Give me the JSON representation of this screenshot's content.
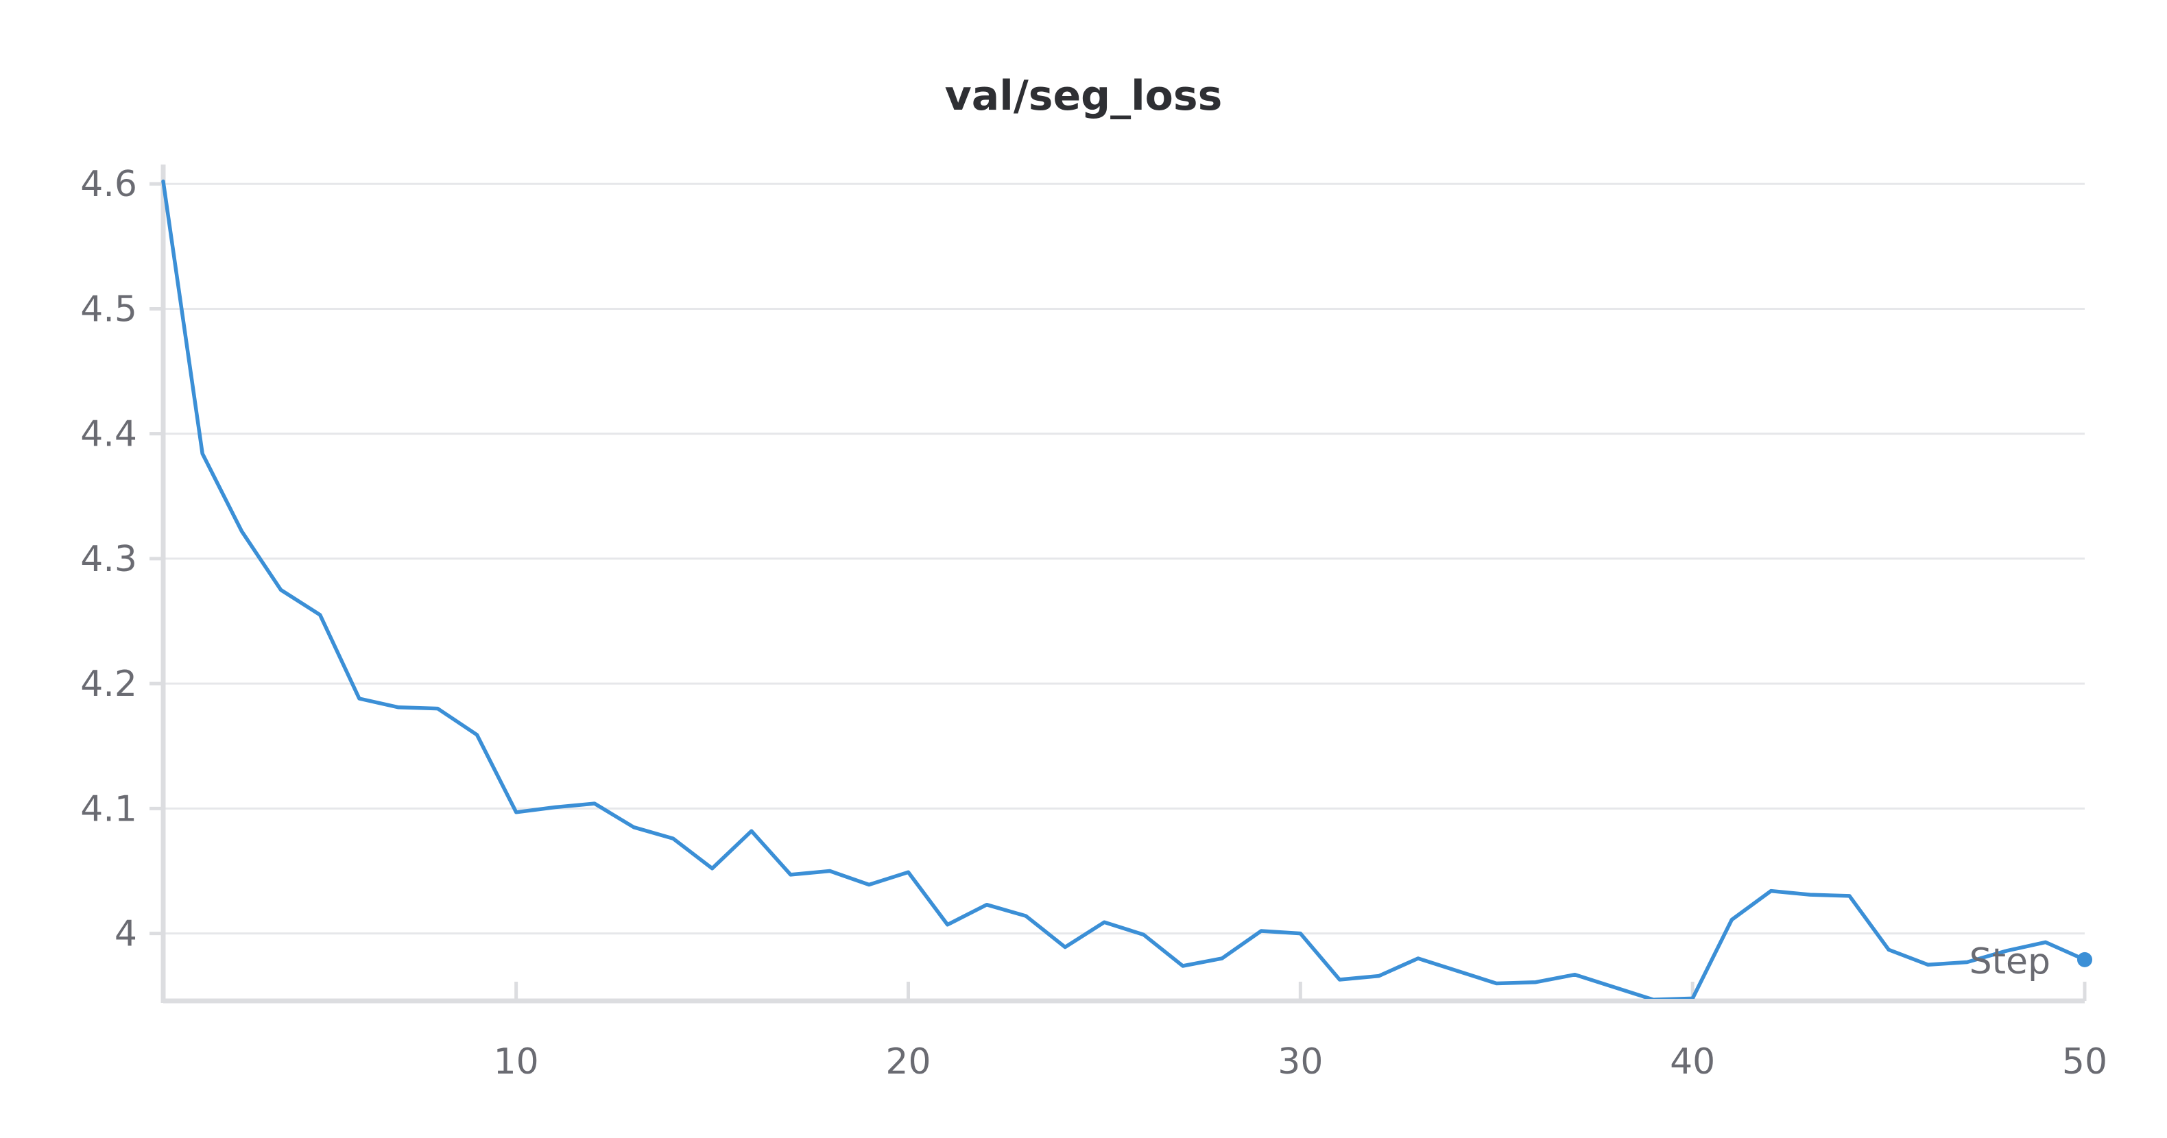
{
  "chart_data": {
    "type": "line",
    "title": "val/seg_loss",
    "xlabel": "Step",
    "ylabel": "",
    "xlim": [
      1,
      50
    ],
    "ylim": [
      3.946,
      4.61
    ],
    "x_ticks": [
      10,
      20,
      30,
      40,
      50
    ],
    "y_ticks": [
      4,
      4.1,
      4.2,
      4.3,
      4.4,
      4.5,
      4.6
    ],
    "grid": true,
    "legend": "none",
    "series": [
      {
        "color": "#3b8fd6",
        "x": [
          1,
          2,
          3,
          4,
          5,
          6,
          7,
          8,
          9,
          10,
          11,
          12,
          13,
          14,
          15,
          16,
          17,
          18,
          19,
          20,
          21,
          22,
          23,
          24,
          25,
          26,
          27,
          28,
          29,
          30,
          31,
          32,
          33,
          34,
          35,
          36,
          37,
          38,
          39,
          40,
          41,
          42,
          43,
          44,
          45,
          46,
          47,
          48,
          49,
          50
        ],
        "values": [
          4.602,
          4.384,
          4.322,
          4.275,
          4.255,
          4.188,
          4.181,
          4.18,
          4.159,
          4.097,
          4.101,
          4.104,
          4.085,
          4.076,
          4.052,
          4.082,
          4.047,
          4.05,
          4.039,
          4.049,
          4.007,
          4.023,
          4.014,
          3.989,
          4.009,
          3.999,
          3.974,
          3.98,
          4.002,
          4.0,
          3.963,
          3.966,
          3.98,
          3.97,
          3.96,
          3.961,
          3.967,
          3.957,
          3.947,
          3.948,
          4.011,
          4.034,
          4.031,
          4.03,
          3.987,
          3.975,
          3.977,
          3.986,
          3.993,
          3.979
        ]
      }
    ]
  }
}
